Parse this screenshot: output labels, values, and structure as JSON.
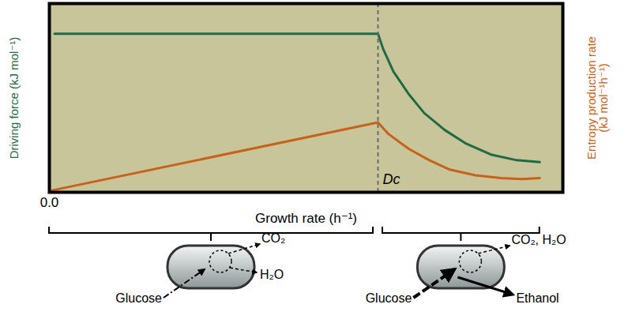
{
  "chart_data": {
    "type": "line",
    "x_label": "Growth rate (h⁻¹)",
    "y_label": "Driving force (kJ mol⁻¹)",
    "y2_label": "Entropy production rate (kJ mol⁻¹h⁻¹)",
    "xlim": [
      0,
      1
    ],
    "xticks": [
      0
    ],
    "ylim": [
      0,
      1
    ],
    "yticks": [],
    "y2lim": [
      0,
      1
    ],
    "y2ticks": [],
    "tick_labels": "x",
    "grid": false,
    "critical_rate": {
      "x": 0.64,
      "label": "Dc",
      "line_style": "dashed",
      "color": "#6b6b6b"
    },
    "series": [
      {
        "name": "Driving force",
        "color": "#1f6b45",
        "axis": "y",
        "x": [
          0.01,
          0.64,
          0.65,
          0.67,
          0.7,
          0.73,
          0.77,
          0.81,
          0.86,
          0.91,
          0.955
        ],
        "values": [
          0.84,
          0.84,
          0.76,
          0.64,
          0.52,
          0.42,
          0.33,
          0.26,
          0.2,
          0.17,
          0.16
        ]
      },
      {
        "name": "Entropy production rate",
        "color": "#c8621a",
        "axis": "y2",
        "x": [
          0.005,
          0.64,
          0.66,
          0.7,
          0.74,
          0.78,
          0.83,
          0.88,
          0.92,
          0.955
        ],
        "values": [
          0.01,
          0.37,
          0.31,
          0.23,
          0.17,
          0.12,
          0.09,
          0.075,
          0.07,
          0.075
        ]
      }
    ],
    "regimes": [
      {
        "inputs": [
          "Glucose"
        ],
        "outputs": [
          "CO₂",
          "H₂O"
        ]
      },
      {
        "inputs": [
          "Glucose"
        ],
        "outputs": [
          "CO₂, H₂O",
          "Ethanol"
        ]
      }
    ]
  }
}
